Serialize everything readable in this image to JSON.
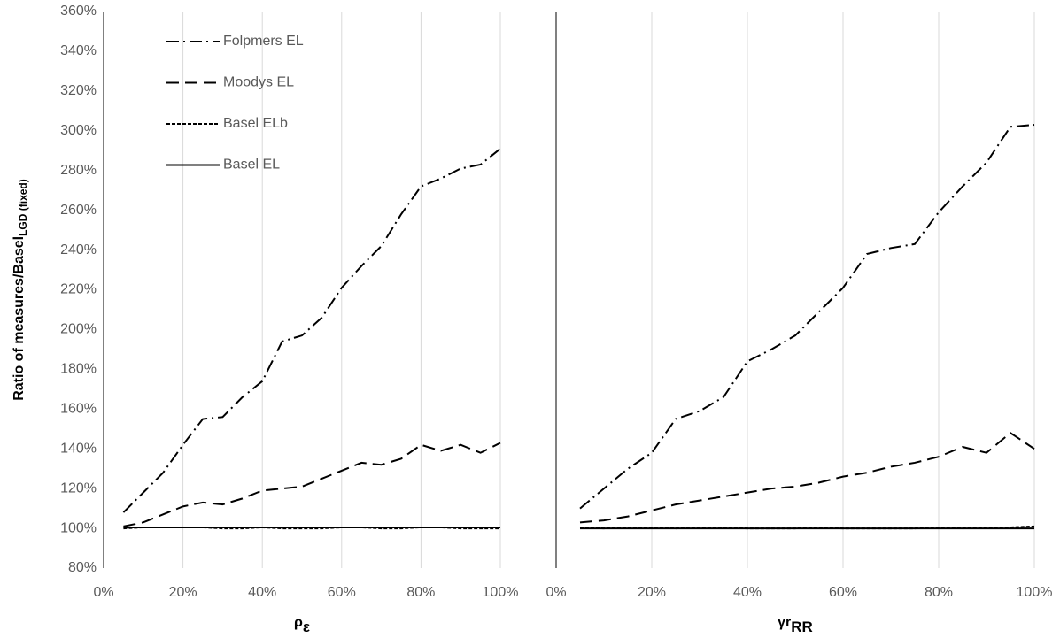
{
  "chart_data": [
    {
      "type": "line",
      "xlabel": "ρ",
      "xlabel_sub": "ε",
      "ylabel": "Ratio of measures/Basel",
      "ylabel_sub": "LGD (fixed)",
      "x": [
        5,
        10,
        15,
        20,
        25,
        30,
        35,
        40,
        45,
        50,
        55,
        60,
        65,
        70,
        75,
        80,
        85,
        90,
        95,
        100
      ],
      "xlim": [
        0,
        100
      ],
      "xticks": [
        {
          "value": 0,
          "label": "0%"
        },
        {
          "value": 20,
          "label": "20%"
        },
        {
          "value": 40,
          "label": "40%"
        },
        {
          "value": 60,
          "label": "60%"
        },
        {
          "value": 80,
          "label": "80%"
        },
        {
          "value": 100,
          "label": "100%"
        }
      ],
      "ylim": [
        80,
        360
      ],
      "yticks": [
        {
          "value": 80,
          "label": "80%"
        },
        {
          "value": 100,
          "label": "100%"
        },
        {
          "value": 120,
          "label": "120%"
        },
        {
          "value": 140,
          "label": "140%"
        },
        {
          "value": 160,
          "label": "160%"
        },
        {
          "value": 180,
          "label": "180%"
        },
        {
          "value": 200,
          "label": "200%"
        },
        {
          "value": 220,
          "label": "220%"
        },
        {
          "value": 240,
          "label": "240%"
        },
        {
          "value": 260,
          "label": "260%"
        },
        {
          "value": 280,
          "label": "280%"
        },
        {
          "value": 300,
          "label": "300%"
        },
        {
          "value": 320,
          "label": "320%"
        },
        {
          "value": 340,
          "label": "340%"
        },
        {
          "value": 360,
          "label": "360%"
        }
      ],
      "grid": "x",
      "legend": "upper left",
      "series": [
        {
          "name": "Folpmers EL",
          "color": "#000000",
          "dash": "dash-dot",
          "values": [
            108,
            118,
            128,
            142,
            155,
            156,
            166,
            174,
            194,
            197,
            206,
            221,
            232,
            242,
            258,
            272,
            276,
            281,
            283,
            291
          ]
        },
        {
          "name": "Moodys EL",
          "color": "#000000",
          "dash": "long-dash",
          "values": [
            101,
            103,
            107,
            111,
            113,
            112,
            115,
            119,
            120,
            121,
            125,
            129,
            133,
            132,
            135,
            142,
            139,
            142,
            138,
            143
          ]
        },
        {
          "name": "Basel ELb",
          "color": "#000000",
          "dash": "short-dash",
          "values": [
            100,
            100.5,
            100.5,
            100.5,
            100.5,
            100,
            100,
            100.5,
            100,
            100,
            100,
            100.5,
            100.5,
            100,
            100,
            100.5,
            100.5,
            100,
            100,
            100
          ]
        },
        {
          "name": "Basel EL",
          "color": "#000000",
          "dash": "solid",
          "values": [
            100.5,
            100.5,
            100.5,
            100.5,
            100.5,
            100.5,
            100.5,
            100.5,
            100.5,
            100.5,
            100.5,
            100.5,
            100.5,
            100.5,
            100.5,
            100.5,
            100.5,
            100.5,
            100.5,
            100.5
          ]
        }
      ]
    },
    {
      "type": "line",
      "xlabel": "γr",
      "xlabel_sub": "RR",
      "x": [
        5,
        10,
        15,
        20,
        25,
        30,
        35,
        40,
        45,
        50,
        55,
        60,
        65,
        70,
        75,
        80,
        85,
        90,
        95,
        100
      ],
      "xlim": [
        0,
        100
      ],
      "xticks": [
        {
          "value": 0,
          "label": "0%"
        },
        {
          "value": 20,
          "label": "20%"
        },
        {
          "value": 40,
          "label": "40%"
        },
        {
          "value": 60,
          "label": "60%"
        },
        {
          "value": 80,
          "label": "80%"
        },
        {
          "value": 100,
          "label": "100%"
        }
      ],
      "ylim": [
        80,
        360
      ],
      "grid": "x",
      "series": [
        {
          "color": "#000000",
          "dash": "dash-dot",
          "values": [
            110,
            120,
            130,
            138,
            155,
            159,
            166,
            184,
            190,
            197,
            209,
            221,
            238,
            241,
            243,
            259,
            272,
            284,
            302,
            303
          ]
        },
        {
          "color": "#000000",
          "dash": "long-dash",
          "values": [
            103,
            104,
            106,
            109,
            112,
            114,
            116,
            118,
            120,
            121,
            123,
            126,
            128,
            131,
            133,
            136,
            141,
            138,
            148,
            140
          ]
        },
        {
          "color": "#000000",
          "dash": "short-dash",
          "values": [
            100.5,
            100,
            100.5,
            100.5,
            100,
            100.5,
            100.5,
            100,
            100,
            100,
            100.5,
            100,
            100,
            100,
            100,
            100.5,
            100,
            100.5,
            100.5,
            101
          ]
        },
        {
          "color": "#000000",
          "dash": "solid",
          "values": [
            100,
            100,
            100,
            100,
            100,
            100,
            100,
            100,
            100,
            100,
            100,
            100,
            100,
            100,
            100,
            100,
            100,
            100,
            100,
            100
          ]
        }
      ]
    }
  ]
}
